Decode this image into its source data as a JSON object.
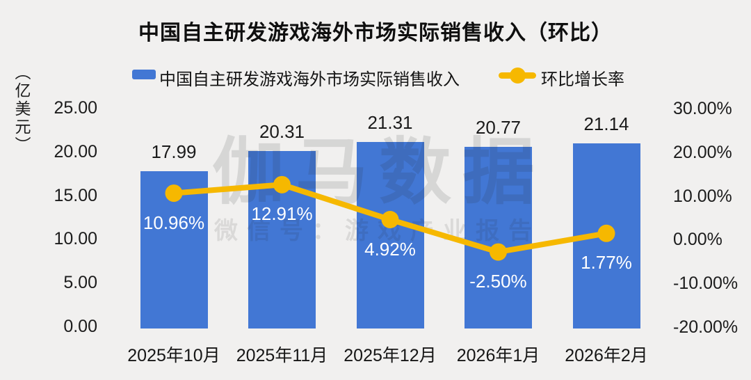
{
  "title": "中国自主研发游戏海外市场实际销售收入（环比）",
  "y_axis_unit": "（亿美元）",
  "legend": {
    "bar_label": "中国自主研发游戏海外市场实际销售收入",
    "line_label": "环比增长率"
  },
  "watermark": {
    "line1": "伽马数据",
    "line2": "微信号：游戏产业报告"
  },
  "colors": {
    "bar": "#4277D4",
    "line": "#F6B800",
    "background": "#F1F0EF",
    "pct_label_text": "#FFFFFF",
    "axis_text": "#1C1C1C"
  },
  "chart_data": {
    "type": "bar",
    "subtype": "combo-bar-line-dual-axis",
    "title": "中国自主研发游戏海外市场实际销售收入（环比）",
    "categories": [
      "2025年10月",
      "2025年11月",
      "2025年12月",
      "2026年1月",
      "2026年2月"
    ],
    "series": [
      {
        "name": "中国自主研发游戏海外市场实际销售收入",
        "type": "bar",
        "axis": "left",
        "values": [
          17.99,
          20.31,
          21.31,
          20.77,
          21.14
        ],
        "labels": [
          "17.99",
          "20.31",
          "21.31",
          "20.77",
          "21.14"
        ]
      },
      {
        "name": "环比增长率",
        "type": "line",
        "axis": "right",
        "values": [
          10.96,
          12.91,
          4.92,
          -2.5,
          1.77
        ],
        "labels": [
          "10.96%",
          "12.91%",
          "4.92%",
          "-2.50%",
          "1.77%"
        ]
      }
    ],
    "left_axis": {
      "unit": "（亿美元）",
      "min": 0,
      "max": 25,
      "ticks": [
        {
          "value": 25,
          "label": "25.00"
        },
        {
          "value": 20,
          "label": "20.00"
        },
        {
          "value": 15,
          "label": "15.00"
        },
        {
          "value": 10,
          "label": "10.00"
        },
        {
          "value": 5,
          "label": "5.00"
        },
        {
          "value": 0,
          "label": "0.00"
        }
      ]
    },
    "right_axis": {
      "min": -20,
      "max": 30,
      "ticks": [
        {
          "value": 30,
          "label": "30.00%"
        },
        {
          "value": 20,
          "label": "20.00%"
        },
        {
          "value": 10,
          "label": "10.00%"
        },
        {
          "value": 0,
          "label": "0.00%"
        },
        {
          "value": -10,
          "label": "-10.00%"
        },
        {
          "value": -20,
          "label": "-20.00%"
        }
      ]
    },
    "grid": false,
    "legend_position": "top"
  }
}
